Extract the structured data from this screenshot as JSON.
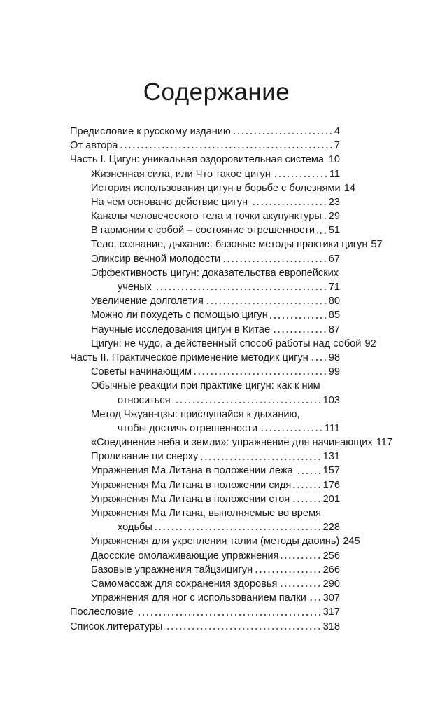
{
  "heading": "Содержание",
  "entries": [
    {
      "title": "Предисловие к русскому изданию",
      "page": "4",
      "level": 0
    },
    {
      "title": "От автора",
      "page": "7",
      "level": 0
    },
    {
      "title": "Часть I. Цигун: уникальная оздоровительная система",
      "page": "10",
      "level": 0
    },
    {
      "title": "Жизненная сила, или Что такое цигун",
      "page": "11",
      "level": 1
    },
    {
      "title": "История использования цигун в борьбе с болезнями",
      "page": "14",
      "level": 1
    },
    {
      "title": "На чем основано действие цигун",
      "page": "23",
      "level": 1
    },
    {
      "title": "Каналы человеческого тела и точки акупунктуры",
      "page": "29",
      "level": 1
    },
    {
      "title": "В гармонии с собой – состояние отрешенности",
      "page": "51",
      "level": 1
    },
    {
      "title": "Тело, сознание, дыхание: базовые методы практики цигун",
      "page": "57",
      "level": 1
    },
    {
      "title": "Эликсир вечной молодости",
      "page": "67",
      "level": 1
    },
    {
      "title": "Эффективность цигун: доказательства европейских",
      "title_cont": "ученых",
      "page": "71",
      "level": 1
    },
    {
      "title": "Увеличение долголетия",
      "page": "80",
      "level": 1
    },
    {
      "title": "Можно ли похудеть с помощью цигун",
      "page": "85",
      "level": 1
    },
    {
      "title": "Научные исследования цигун в Китае",
      "page": "87",
      "level": 1
    },
    {
      "title": "Цигун: не чудо, а действенный способ работы над собой",
      "page": "92",
      "level": 1
    },
    {
      "title": "Часть II. Практическое применение методик цигун",
      "page": "98",
      "level": 0
    },
    {
      "title": "Советы начинающим",
      "page": "99",
      "level": 1
    },
    {
      "title": "Обычные реакции при практике цигун: как к ним",
      "title_cont": "относиться",
      "page": "103",
      "level": 1
    },
    {
      "title": "Метод Чжуан-цзы:  прислушайся к дыханию,",
      "title_cont": "чтобы достичь отрешенности",
      "page": "111",
      "level": 1
    },
    {
      "title": "«Соединение неба и земли»: упражнение для начинающих",
      "page": "117",
      "level": 1
    },
    {
      "title": "Проливание ци сверху",
      "page": "131",
      "level": 1
    },
    {
      "title": "Упражнения Ма Литана в положении лежа",
      "page": "157",
      "level": 1
    },
    {
      "title": "Упражнения Ма Литана в положении сидя",
      "page": "176",
      "level": 1
    },
    {
      "title": "Упражнения Ма Литана в положении стоя",
      "page": "201",
      "level": 1
    },
    {
      "title": "Упражнения Ма Литана, выполняемые во время",
      "title_cont": "ходьбы",
      "page": "228",
      "level": 1
    },
    {
      "title": "Упражнения для укрепления талии (методы даоинь)",
      "page": "245",
      "level": 1
    },
    {
      "title": "Даосские омолаживающие упражнения",
      "page": "256",
      "level": 1
    },
    {
      "title": "Базовые упражнения тайцзицигун",
      "page": "266",
      "level": 1
    },
    {
      "title": "Самомассаж для сохранения здоровья",
      "page": "290",
      "level": 1
    },
    {
      "title": "Упражнения для ног с использованием палки",
      "page": "307",
      "level": 1
    },
    {
      "title": "Послесловие",
      "page": "317",
      "level": 0
    },
    {
      "title": "Список литературы",
      "page": "318",
      "level": 0
    }
  ]
}
